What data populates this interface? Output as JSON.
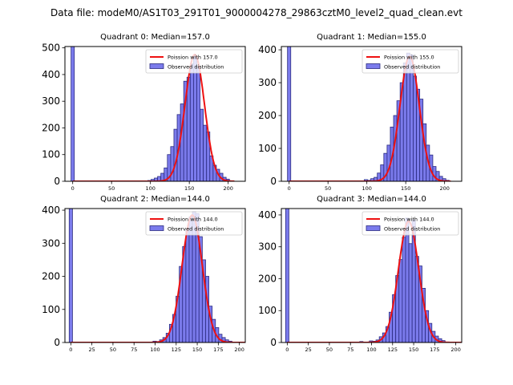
{
  "suptitle": "Data file: modeM0/AS1T03_291T01_9000004278_29863cztM0_level2_quad_clean.evt",
  "colors": {
    "bar_fill": "#7b7bec",
    "bar_edge": "#2b2b80",
    "poisson_line": "#ee1111",
    "axis": "#000000"
  },
  "chart_data": [
    {
      "type": "bar",
      "title": "Quadrant 0: Median=157.0",
      "xlabel": "",
      "ylabel": "",
      "xlim": [
        -10,
        222
      ],
      "ylim": [
        0,
        505
      ],
      "xticks": [
        0,
        50,
        100,
        150,
        200
      ],
      "yticks": [
        0,
        100,
        200,
        300,
        400,
        500
      ],
      "legend": [
        "Poission with 157.0",
        "Observed distribution"
      ],
      "legend_loc": "upper right",
      "poisson_mean": 157.0,
      "poisson_scale": 475,
      "bin_width": 4.2,
      "zero_bin": {
        "x": 0,
        "height": 505
      },
      "bins": [
        [
          96.6,
          3
        ],
        [
          100.8,
          7
        ],
        [
          105,
          12
        ],
        [
          109.2,
          18
        ],
        [
          113.4,
          30
        ],
        [
          117.6,
          50
        ],
        [
          121.8,
          100
        ],
        [
          126,
          130
        ],
        [
          130.2,
          195
        ],
        [
          134.4,
          250
        ],
        [
          138.6,
          290
        ],
        [
          142.8,
          375
        ],
        [
          147,
          390
        ],
        [
          151.2,
          440
        ],
        [
          155.4,
          470
        ],
        [
          159.6,
          430
        ],
        [
          163.8,
          270
        ],
        [
          168,
          210
        ],
        [
          172.2,
          185
        ],
        [
          176.4,
          95
        ],
        [
          180.6,
          60
        ],
        [
          184.8,
          45
        ],
        [
          189,
          30
        ],
        [
          193.2,
          15
        ],
        [
          197.4,
          8
        ]
      ]
    },
    {
      "type": "bar",
      "title": "Quadrant 1: Median=155.0",
      "xlabel": "",
      "ylabel": "",
      "xlim": [
        -10,
        222
      ],
      "ylim": [
        0,
        410
      ],
      "xticks": [
        0,
        50,
        100,
        150,
        200
      ],
      "yticks": [
        0,
        100,
        200,
        300,
        400
      ],
      "legend": [
        "Poission with 155.0",
        "Observed distribution"
      ],
      "legend_loc": "upper right",
      "poisson_mean": 155.0,
      "poisson_scale": 380,
      "bin_width": 4.2,
      "zero_bin": {
        "x": 0,
        "height": 410
      },
      "bins": [
        [
          96.6,
          5
        ],
        [
          100.8,
          3
        ],
        [
          105,
          8
        ],
        [
          109.2,
          12
        ],
        [
          113.4,
          25
        ],
        [
          117.6,
          50
        ],
        [
          121.8,
          85
        ],
        [
          126,
          110
        ],
        [
          130.2,
          165
        ],
        [
          134.4,
          200
        ],
        [
          138.6,
          245
        ],
        [
          142.8,
          300
        ],
        [
          147,
          360
        ],
        [
          151.2,
          390
        ],
        [
          155.4,
          385
        ],
        [
          159.6,
          320
        ],
        [
          163.8,
          280
        ],
        [
          168,
          250
        ],
        [
          172.2,
          175
        ],
        [
          176.4,
          110
        ],
        [
          180.6,
          80
        ],
        [
          184.8,
          45
        ],
        [
          189,
          30
        ],
        [
          193.2,
          15
        ],
        [
          197.4,
          8
        ],
        [
          201.6,
          3
        ]
      ]
    },
    {
      "type": "bar",
      "title": "Quadrant 2: Median=144.0",
      "xlabel": "",
      "ylabel": "",
      "xlim": [
        -7,
        207
      ],
      "ylim": [
        0,
        405
      ],
      "xticks": [
        0,
        25,
        50,
        75,
        100,
        125,
        150,
        175,
        200
      ],
      "yticks": [
        0,
        100,
        200,
        300,
        400
      ],
      "legend": [
        "Poission with 144.0",
        "Observed distribution"
      ],
      "legend_loc": "upper right",
      "poisson_mean": 144.0,
      "poisson_scale": 385,
      "bin_width": 3.9,
      "zero_bin": {
        "x": 0,
        "height": 405
      },
      "bins": [
        [
          97.5,
          4
        ],
        [
          101.4,
          3
        ],
        [
          105.3,
          8
        ],
        [
          109.2,
          15
        ],
        [
          113.1,
          28
        ],
        [
          117,
          55
        ],
        [
          120.9,
          85
        ],
        [
          124.8,
          140
        ],
        [
          128.7,
          230
        ],
        [
          132.6,
          290
        ],
        [
          136.5,
          340
        ],
        [
          140.4,
          380
        ],
        [
          144.3,
          395
        ],
        [
          148.2,
          390
        ],
        [
          152.1,
          320
        ],
        [
          156,
          250
        ],
        [
          159.9,
          200
        ],
        [
          163.8,
          110
        ],
        [
          167.7,
          70
        ],
        [
          171.6,
          45
        ],
        [
          175.5,
          25
        ],
        [
          179.4,
          15
        ],
        [
          183.3,
          8
        ],
        [
          187.2,
          4
        ]
      ]
    },
    {
      "type": "bar",
      "title": "Quadrant 3: Median=144.0",
      "xlabel": "",
      "ylabel": "",
      "xlim": [
        -7,
        207
      ],
      "ylim": [
        0,
        420
      ],
      "xticks": [
        0,
        25,
        50,
        75,
        100,
        125,
        150,
        175,
        200
      ],
      "yticks": [
        0,
        100,
        200,
        300,
        400
      ],
      "legend": [
        "Poission with 144.0",
        "Observed distribution"
      ],
      "legend_loc": "upper right",
      "poisson_mean": 144.0,
      "poisson_scale": 380,
      "bin_width": 3.9,
      "zero_bin": {
        "x": 0,
        "height": 420
      },
      "bins": [
        [
          86,
          3
        ],
        [
          97.5,
          5
        ],
        [
          101.4,
          4
        ],
        [
          105.3,
          8
        ],
        [
          109.2,
          18
        ],
        [
          113.1,
          30
        ],
        [
          117,
          50
        ],
        [
          120.9,
          95
        ],
        [
          124.8,
          150
        ],
        [
          128.7,
          210
        ],
        [
          132.6,
          260
        ],
        [
          136.5,
          330
        ],
        [
          140.4,
          390
        ],
        [
          144.3,
          310
        ],
        [
          148.2,
          385
        ],
        [
          152.1,
          270
        ],
        [
          156,
          240
        ],
        [
          159.9,
          170
        ],
        [
          163.8,
          100
        ],
        [
          167.7,
          60
        ],
        [
          171.6,
          35
        ],
        [
          175.5,
          20
        ],
        [
          179.4,
          12
        ],
        [
          183.3,
          6
        ]
      ]
    }
  ]
}
